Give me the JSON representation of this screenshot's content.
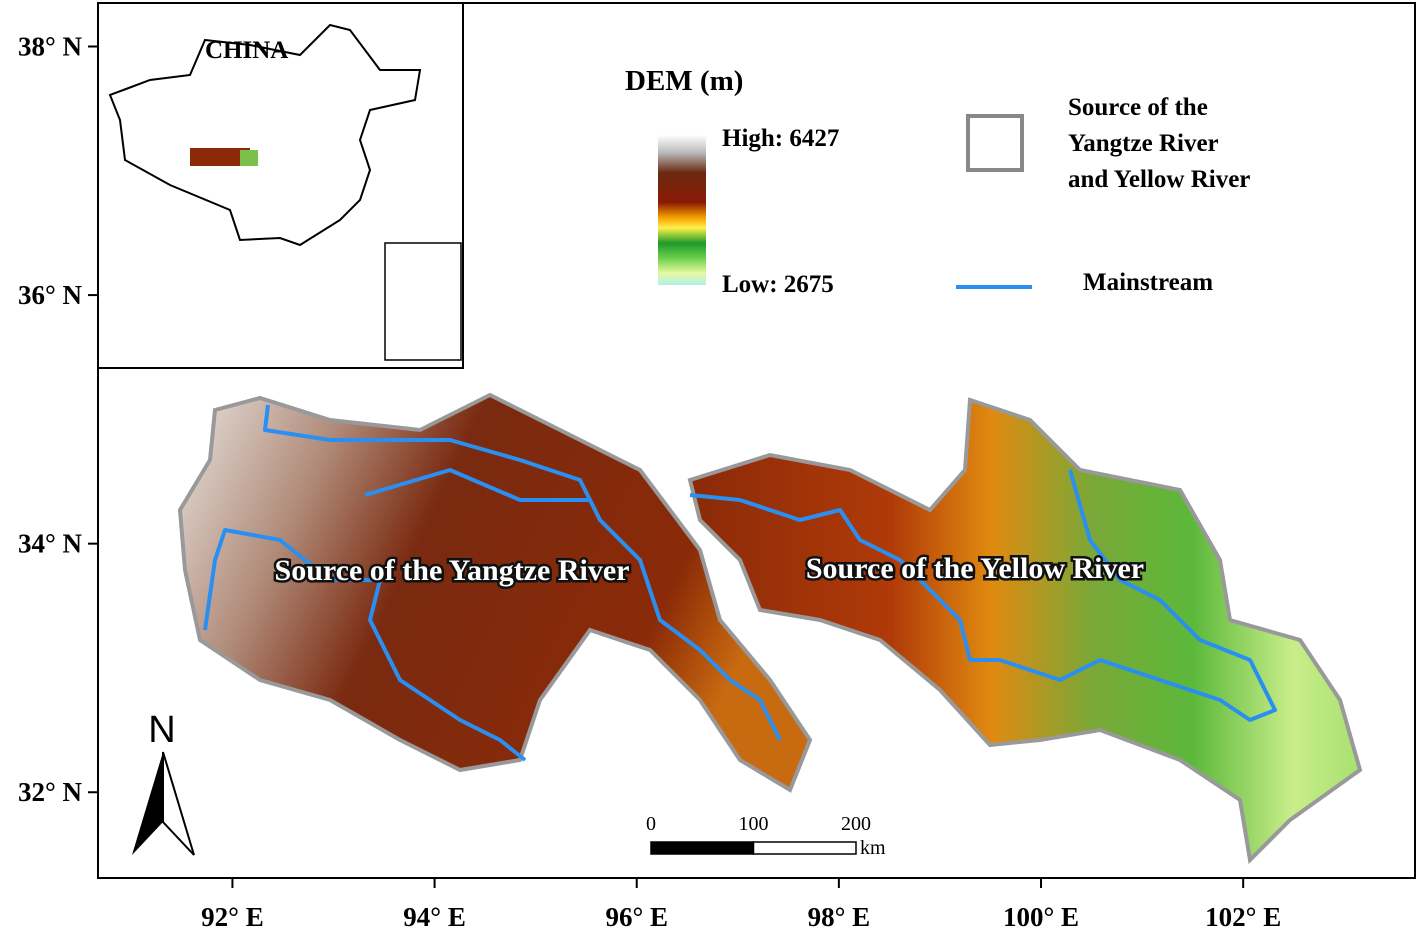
{
  "inset": {
    "title": "CHINA"
  },
  "legend": {
    "title": "DEM (m)",
    "high": "High: 6427",
    "low": "Low: 2675",
    "boundary": [
      "Source of the",
      "Yangtze River",
      "and Yellow River"
    ],
    "mainstream": "Mainstream"
  },
  "regions": [
    "Source of the Yangtze River",
    "Source of the Yellow River"
  ],
  "axes": {
    "xlim": [
      90.67,
      103.7
    ],
    "ylim": [
      31.31,
      38.35
    ],
    "xticks": [
      {
        "value": 92,
        "label": "92° E"
      },
      {
        "value": 94,
        "label": "94° E"
      },
      {
        "value": 96,
        "label": "96° E"
      },
      {
        "value": 98,
        "label": "98° E"
      },
      {
        "value": 100,
        "label": "100° E"
      },
      {
        "value": 102,
        "label": "102° E"
      }
    ],
    "yticks": [
      {
        "value": 38,
        "label": "38° N"
      },
      {
        "value": 36,
        "label": "36° N"
      },
      {
        "value": 34,
        "label": "34° N"
      },
      {
        "value": 32,
        "label": "32° N"
      }
    ]
  },
  "scale_bar": {
    "ticks": [
      0,
      100,
      200
    ],
    "unit": "km"
  },
  "north": "N"
}
